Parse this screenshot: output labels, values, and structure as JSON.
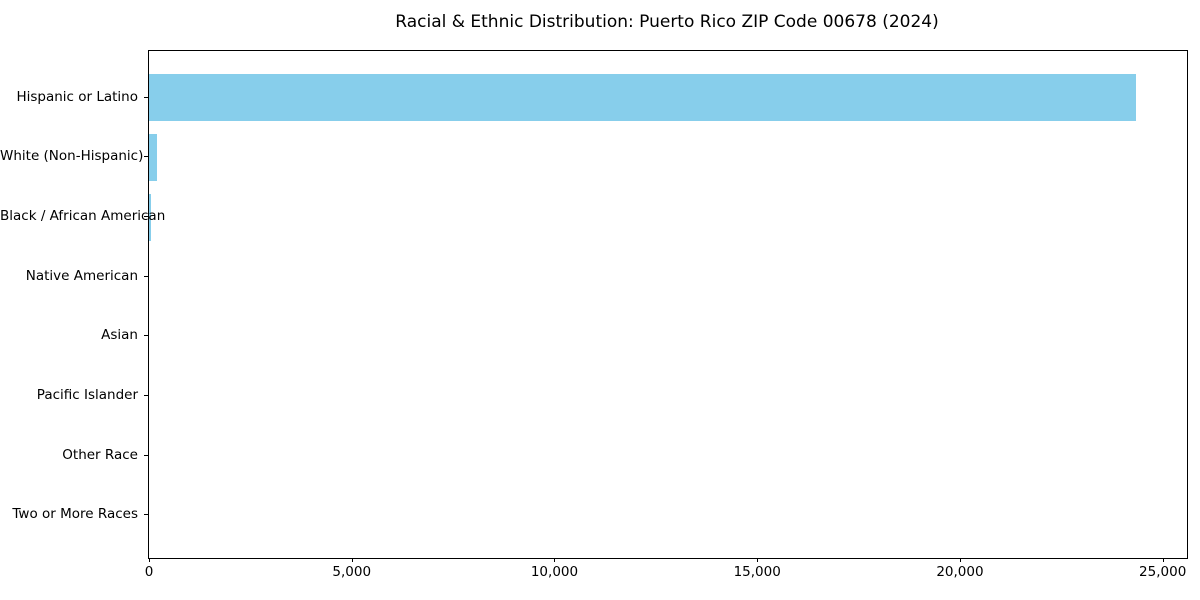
{
  "title": "Racial & Ethnic Distribution: Puerto Rico ZIP Code 00678 (2024)",
  "colors": {
    "bar": "#87CEEB",
    "axis": "#000000",
    "text": "#000000",
    "background": "#ffffff"
  },
  "chart_data": {
    "type": "bar",
    "orientation": "horizontal",
    "title": "Racial & Ethnic Distribution: Puerto Rico ZIP Code 00678 (2024)",
    "xlabel": "",
    "ylabel": "",
    "categories": [
      "Hispanic or Latino",
      "White (Non-Hispanic)",
      "Black / African American",
      "Native American",
      "Asian",
      "Pacific Islander",
      "Other Race",
      "Two or More Races"
    ],
    "values": [
      24330,
      190,
      40,
      0,
      0,
      0,
      0,
      0
    ],
    "xlim": [
      0,
      25600
    ],
    "xticks": [
      0,
      5000,
      10000,
      15000,
      20000,
      25000
    ],
    "xtick_labels": [
      "0",
      "5,000",
      "10,000",
      "15,000",
      "20,000",
      "25,000"
    ],
    "bar_color": "#87CEEB",
    "grid": false,
    "legend": "none"
  }
}
